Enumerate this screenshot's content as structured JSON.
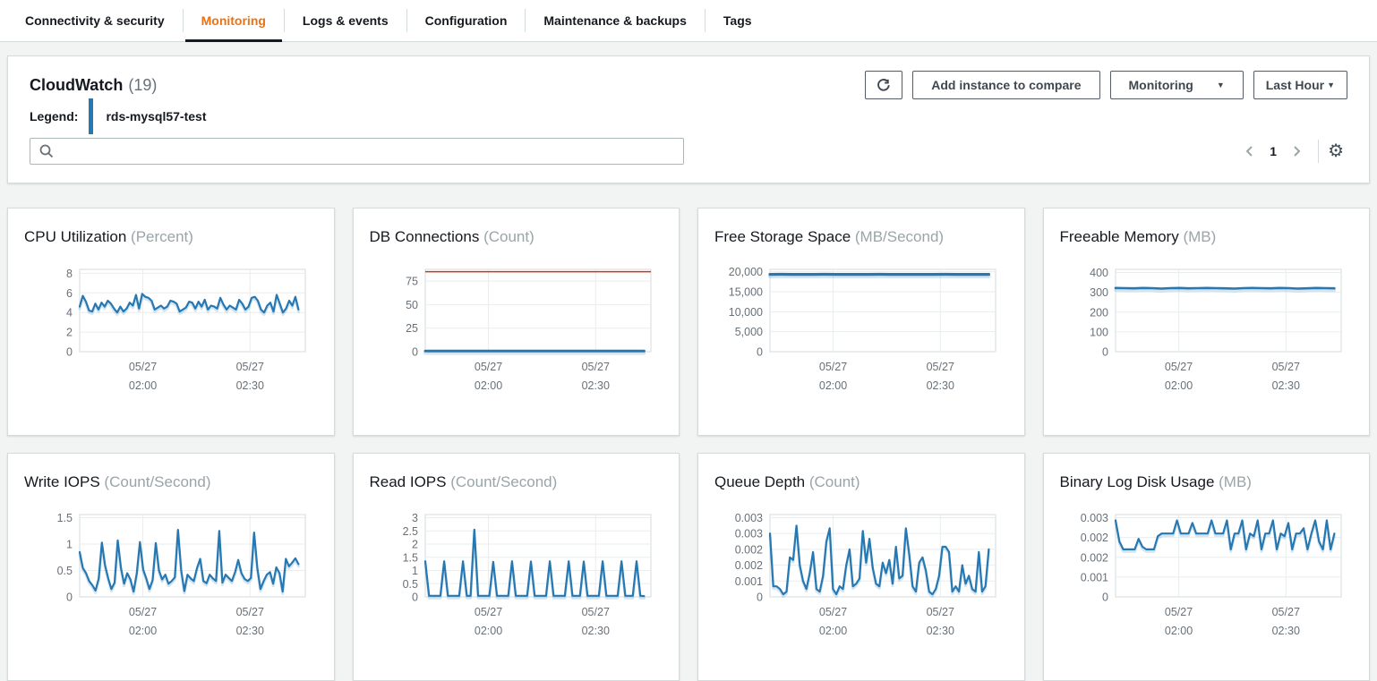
{
  "tabs": {
    "items": [
      {
        "label": "Connectivity & security",
        "active": false
      },
      {
        "label": "Monitoring",
        "active": true
      },
      {
        "label": "Logs & events",
        "active": false
      },
      {
        "label": "Configuration",
        "active": false
      },
      {
        "label": "Maintenance & backups",
        "active": false
      },
      {
        "label": "Tags",
        "active": false
      }
    ]
  },
  "header": {
    "title": "CloudWatch",
    "count": "(19)",
    "legend_label": "Legend:",
    "instance_name": "rds-mysql57-test",
    "search_placeholder": "",
    "buttons": {
      "add_instance": "Add instance to compare",
      "monitoring_dropdown": "Monitoring",
      "time_range_dropdown": "Last Hour"
    },
    "pagination": {
      "current_page": "1"
    }
  },
  "icons": {
    "refresh": "circular-arrow",
    "search": "magnifier",
    "gear": "⚙",
    "chevron_left": "angle-left",
    "chevron_right": "angle-right",
    "caret_down": "▼"
  },
  "colors": {
    "line_blue": "#2678b3",
    "line_shadow": "rgba(38,120,179,0.20)",
    "threshold_red": "#d13212",
    "tab_active_orange": "#ec7211",
    "legend_blue": "#2678b3",
    "grid_line": "#eaeded",
    "axis_text": "#687078"
  },
  "chart_data": [
    {
      "id": "cpu-utilization",
      "type": "line",
      "title": "CPU Utilization",
      "unit": "(Percent)",
      "ylim": [
        0,
        8.4
      ],
      "line_width": 2.2,
      "y_ticks": [
        {
          "v": 0,
          "label": "0"
        },
        {
          "v": 2,
          "label": "2"
        },
        {
          "v": 4,
          "label": "4"
        },
        {
          "v": 6,
          "label": "6"
        },
        {
          "v": 8,
          "label": "8"
        }
      ],
      "x_ticks": [
        {
          "pos": 0.28,
          "lines": [
            "05/27",
            "02:00"
          ]
        },
        {
          "pos": 0.755,
          "lines": [
            "05/27",
            "02:30"
          ]
        }
      ],
      "values": [
        4.6,
        5.7,
        5.1,
        4.2,
        4.1,
        4.9,
        4.3,
        5.0,
        4.6,
        5.2,
        4.9,
        4.4,
        4.0,
        4.6,
        4.1,
        4.4,
        5.0,
        4.7,
        5.8,
        4.4,
        5.9,
        5.6,
        5.5,
        5.2,
        4.3,
        4.5,
        4.7,
        4.4,
        4.6,
        5.2,
        5.1,
        4.9,
        4.1,
        4.3,
        4.5,
        5.1,
        5.0,
        4.4,
        5.1,
        4.6,
        5.3,
        4.3,
        4.7,
        4.6,
        4.4,
        5.5,
        4.8,
        4.3,
        4.7,
        4.5,
        4.3,
        5.3,
        4.9,
        4.3,
        4.6,
        5.5,
        5.6,
        5.2,
        4.3,
        4.0,
        4.7,
        5.0,
        4.1,
        5.8,
        4.9,
        4.0,
        4.4,
        5.2,
        4.7,
        5.6,
        4.3
      ]
    },
    {
      "id": "db-connections",
      "type": "line",
      "title": "DB Connections",
      "unit": "(Count)",
      "ylim": [
        0,
        87.5
      ],
      "line_width": 3,
      "threshold": 85,
      "y_ticks": [
        {
          "v": 0,
          "label": "0"
        },
        {
          "v": 25,
          "label": "25"
        },
        {
          "v": 50,
          "label": "50"
        },
        {
          "v": 75,
          "label": "75"
        }
      ],
      "x_ticks": [
        {
          "pos": 0.28,
          "lines": [
            "05/27",
            "02:00"
          ]
        },
        {
          "pos": 0.755,
          "lines": [
            "05/27",
            "02:30"
          ]
        }
      ],
      "values": [
        0.8,
        0.8,
        0.8,
        0.8,
        0.8,
        0.8,
        0.8,
        0.8,
        0.8,
        0.8,
        0.8,
        0.8,
        0.8,
        0.8,
        0.8,
        0.8,
        0.8,
        0.8,
        0.8,
        0.8,
        0.8
      ]
    },
    {
      "id": "free-storage-space",
      "type": "line",
      "title": "Free Storage Space",
      "unit": "(MB/Second)",
      "ylim": [
        0,
        20600
      ],
      "line_width": 3.2,
      "y_ticks": [
        {
          "v": 0,
          "label": "0"
        },
        {
          "v": 5000,
          "label": "5,000"
        },
        {
          "v": 10000,
          "label": "10,000"
        },
        {
          "v": 15000,
          "label": "15,000"
        },
        {
          "v": 20000,
          "label": "20,000"
        }
      ],
      "x_ticks": [
        {
          "pos": 0.28,
          "lines": [
            "05/27",
            "02:00"
          ]
        },
        {
          "pos": 0.755,
          "lines": [
            "05/27",
            "02:30"
          ]
        }
      ],
      "values": [
        19350,
        19360,
        19350,
        19340,
        19350,
        19360,
        19350,
        19350,
        19340,
        19350,
        19360,
        19350,
        19350,
        19340,
        19350,
        19350,
        19360,
        19350,
        19340,
        19350,
        19350
      ]
    },
    {
      "id": "freeable-memory",
      "type": "line",
      "title": "Freeable Memory",
      "unit": "(MB)",
      "ylim": [
        0,
        416
      ],
      "line_width": 2.6,
      "y_ticks": [
        {
          "v": 0,
          "label": "0"
        },
        {
          "v": 100,
          "label": "100"
        },
        {
          "v": 200,
          "label": "200"
        },
        {
          "v": 300,
          "label": "300"
        },
        {
          "v": 400,
          "label": "400"
        }
      ],
      "x_ticks": [
        {
          "pos": 0.28,
          "lines": [
            "05/27",
            "02:00"
          ]
        },
        {
          "pos": 0.755,
          "lines": [
            "05/27",
            "02:30"
          ]
        }
      ],
      "values": [
        322,
        321,
        320,
        322,
        321,
        319,
        321,
        322,
        320,
        321,
        322,
        321,
        320,
        319,
        321,
        322,
        321,
        320,
        322,
        321,
        319,
        320,
        322,
        321,
        320
      ]
    },
    {
      "id": "write-iops",
      "type": "line",
      "title": "Write IOPS",
      "unit": "(Count/Second)",
      "ylim": [
        0,
        1.56
      ],
      "line_width": 2.2,
      "y_ticks": [
        {
          "v": 0,
          "label": "0"
        },
        {
          "v": 0.5,
          "label": "0.5"
        },
        {
          "v": 1,
          "label": "1"
        },
        {
          "v": 1.5,
          "label": "1.5"
        }
      ],
      "x_ticks": [
        {
          "pos": 0.28,
          "lines": [
            "05/27",
            "02:00"
          ]
        },
        {
          "pos": 0.755,
          "lines": [
            "05/27",
            "02:30"
          ]
        }
      ],
      "values": [
        0.85,
        0.55,
        0.45,
        0.3,
        0.22,
        0.12,
        0.35,
        1.03,
        0.6,
        0.35,
        0.15,
        0.27,
        1.07,
        0.55,
        0.25,
        0.45,
        0.33,
        0.1,
        0.45,
        1.04,
        0.52,
        0.35,
        0.15,
        0.32,
        1.02,
        0.5,
        0.33,
        0.42,
        0.25,
        0.3,
        0.37,
        1.27,
        0.5,
        0.11,
        0.42,
        0.35,
        0.3,
        0.55,
        0.72,
        0.3,
        0.26,
        0.42,
        0.35,
        0.3,
        1.25,
        0.27,
        0.42,
        0.36,
        0.3,
        0.47,
        0.7,
        0.45,
        0.34,
        0.3,
        0.36,
        1.22,
        0.55,
        0.15,
        0.3,
        0.42,
        0.47,
        0.25,
        0.56,
        0.45,
        0.1,
        0.72,
        0.58,
        0.65,
        0.73,
        0.62
      ]
    },
    {
      "id": "read-iops",
      "type": "line",
      "title": "Read IOPS",
      "unit": "(Count/Second)",
      "ylim": [
        0,
        3.12
      ],
      "line_width": 2.2,
      "y_ticks": [
        {
          "v": 0,
          "label": "0"
        },
        {
          "v": 0.5,
          "label": "0.5"
        },
        {
          "v": 1,
          "label": "1"
        },
        {
          "v": 1.5,
          "label": "1.5"
        },
        {
          "v": 2,
          "label": "2"
        },
        {
          "v": 2.5,
          "label": "2.5"
        },
        {
          "v": 3,
          "label": "3"
        }
      ],
      "x_ticks": [
        {
          "pos": 0.28,
          "lines": [
            "05/27",
            "02:00"
          ]
        },
        {
          "pos": 0.755,
          "lines": [
            "05/27",
            "02:30"
          ]
        }
      ],
      "values": [
        1.35,
        0.04,
        0.04,
        0.04,
        0.04,
        1.35,
        0.04,
        0.04,
        0.04,
        0.04,
        1.35,
        0.04,
        0.04,
        2.55,
        0.04,
        0.04,
        0.04,
        0.04,
        1.33,
        0.04,
        0.04,
        0.04,
        0.04,
        1.35,
        0.04,
        0.04,
        0.04,
        0.04,
        1.34,
        0.04,
        0.04,
        0.04,
        0.04,
        1.35,
        0.04,
        0.04,
        0.04,
        0.04,
        1.35,
        0.04,
        0.04,
        0.04,
        1.34,
        0.04,
        0.04,
        0.04,
        0.04,
        1.35,
        0.04,
        0.04,
        0.04,
        0.04,
        1.35,
        0.04,
        0.04,
        0.04,
        1.35,
        0.04,
        0.03
      ]
    },
    {
      "id": "queue-depth",
      "type": "line",
      "title": "Queue Depth",
      "unit": "(Count)",
      "ylim": [
        0,
        0.00312
      ],
      "line_width": 2.2,
      "y_ticks": [
        {
          "v": 0,
          "label": "0"
        },
        {
          "v": 0.0006,
          "label": "0.001"
        },
        {
          "v": 0.0012,
          "label": "0.002"
        },
        {
          "v": 0.0018,
          "label": "0.002"
        },
        {
          "v": 0.0024,
          "label": "0.003"
        },
        {
          "v": 0.003,
          "label": "0.003"
        }
      ],
      "x_ticks": [
        {
          "pos": 0.28,
          "lines": [
            "05/27",
            "02:00"
          ]
        },
        {
          "pos": 0.755,
          "lines": [
            "05/27",
            "02:30"
          ]
        }
      ],
      "values": [
        0.0024,
        0.0004,
        0.0004,
        0.0003,
        0.0001,
        0.0002,
        0.0015,
        0.0014,
        0.0027,
        0.0012,
        0.0006,
        0.0003,
        0.0009,
        0.0017,
        0.0003,
        0.0002,
        0.0008,
        0.0021,
        0.0026,
        0.0003,
        0.0001,
        0.0004,
        0.0003,
        0.0012,
        0.0018,
        0.0004,
        0.0005,
        0.0007,
        0.0025,
        0.0013,
        0.0022,
        0.0011,
        0.0005,
        0.0004,
        0.0013,
        0.0009,
        0.0014,
        0.0005,
        0.0019,
        0.0007,
        0.0008,
        0.0026,
        0.0016,
        0.0004,
        0.0002,
        0.0013,
        0.0015,
        0.001,
        0.0002,
        0.0001,
        0.0003,
        0.0008,
        0.0019,
        0.0019,
        0.0017,
        0.0002,
        0.0004,
        0.0002,
        0.0012,
        0.0005,
        0.0008,
        0.0003,
        0.0002,
        0.0017,
        0.0002,
        0.0004,
        0.0018
      ]
    },
    {
      "id": "binary-log-disk-usage",
      "type": "line",
      "title": "Binary Log Disk Usage",
      "unit": "(MB)",
      "ylim": [
        0,
        0.00312
      ],
      "line_width": 2.2,
      "y_ticks": [
        {
          "v": 0,
          "label": "0"
        },
        {
          "v": 0.00075,
          "label": "0.001"
        },
        {
          "v": 0.0015,
          "label": "0.002"
        },
        {
          "v": 0.00225,
          "label": "0.002"
        },
        {
          "v": 0.003,
          "label": "0.003"
        }
      ],
      "x_ticks": [
        {
          "pos": 0.28,
          "lines": [
            "05/27",
            "02:00"
          ]
        },
        {
          "pos": 0.755,
          "lines": [
            "05/27",
            "02:30"
          ]
        }
      ],
      "values": [
        0.0029,
        0.0021,
        0.0018,
        0.0018,
        0.0018,
        0.0018,
        0.0022,
        0.0019,
        0.0018,
        0.0018,
        0.0018,
        0.0023,
        0.0024,
        0.0024,
        0.0024,
        0.0024,
        0.0029,
        0.0024,
        0.0024,
        0.0024,
        0.0028,
        0.0024,
        0.0024,
        0.0024,
        0.0024,
        0.0029,
        0.0024,
        0.0024,
        0.0024,
        0.0029,
        0.0018,
        0.0024,
        0.0024,
        0.0029,
        0.0018,
        0.0024,
        0.0023,
        0.0029,
        0.0018,
        0.0024,
        0.0024,
        0.0029,
        0.0018,
        0.0024,
        0.0023,
        0.0028,
        0.0018,
        0.0024,
        0.0024,
        0.0026,
        0.0018,
        0.0024,
        0.0029,
        0.0021,
        0.0018,
        0.0029,
        0.0018,
        0.0024
      ]
    }
  ]
}
